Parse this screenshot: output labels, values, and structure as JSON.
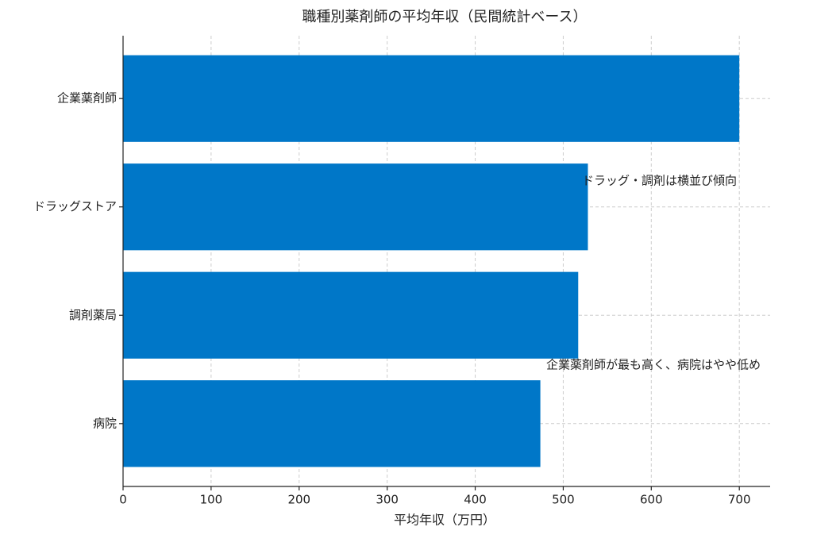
{
  "chart_data": {
    "type": "barh",
    "title": "職種別薬剤師の平均年収（民間統計ベース）",
    "x_label": "平均年収（万円）",
    "categories": [
      "企業薬剤師",
      "ドラッグストア",
      "調剤薬局",
      "病院"
    ],
    "values": [
      700,
      528,
      517,
      474
    ],
    "color": "#0077c8",
    "xlim": [
      0,
      735
    ],
    "xticks": [
      0,
      100,
      200,
      300,
      400,
      500,
      600,
      700
    ],
    "grid": true,
    "annotations": [
      "ドラッグ・調剤は横並び傾向",
      "企業薬剤師が最も高く、病院はやや低め"
    ]
  }
}
